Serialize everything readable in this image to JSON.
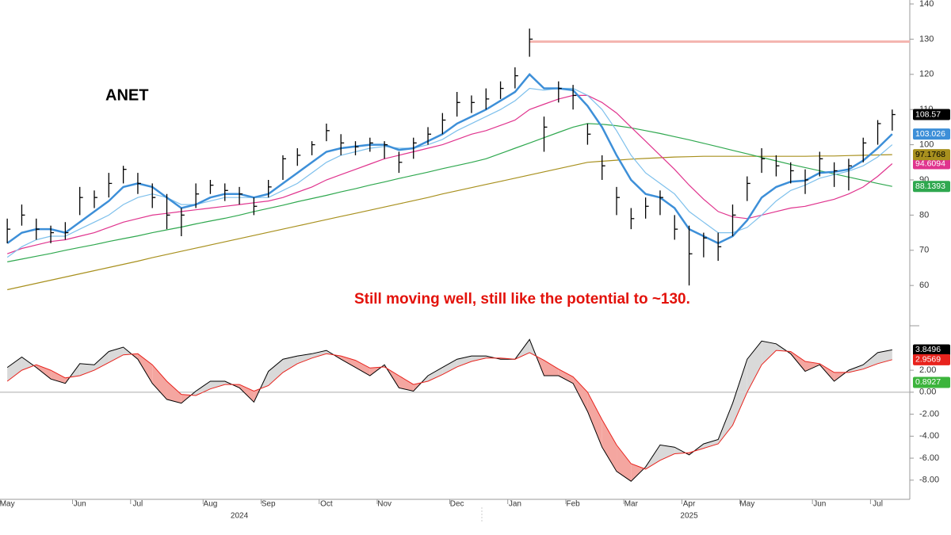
{
  "chart_data": [
    {
      "type": "ohlc",
      "title": "ANET",
      "annotation": "Still moving well, still like the potential to ~130.",
      "categories": [
        "May",
        null,
        null,
        null,
        null,
        "Jun",
        null,
        null,
        null,
        "Jul",
        null,
        null,
        null,
        null,
        "Aug",
        null,
        null,
        null,
        "Sep",
        null,
        null,
        null,
        "Oct",
        null,
        null,
        null,
        "Nov",
        null,
        null,
        null,
        null,
        "Dec",
        null,
        null,
        null,
        "Jan",
        null,
        null,
        null,
        "Feb",
        null,
        null,
        null,
        "Mar",
        null,
        null,
        null,
        "Apr",
        null,
        null,
        null,
        "May",
        null,
        null,
        null,
        null,
        "Jun",
        null,
        null,
        null,
        "Jul",
        null
      ],
      "x_year_labels": [
        {
          "value": 16,
          "label": "2024"
        },
        {
          "value": 47,
          "label": "2025"
        }
      ],
      "high": [
        79,
        83,
        79,
        77,
        78,
        88,
        87,
        92,
        94,
        92,
        89,
        86,
        82,
        89,
        90,
        89,
        88,
        85,
        90,
        97,
        99,
        101,
        106,
        103,
        101,
        102,
        101,
        98,
        102,
        105,
        109,
        115,
        114,
        116,
        118,
        122,
        133,
        108,
        118,
        117,
        106,
        97,
        88,
        82,
        85,
        87,
        80,
        77,
        75,
        75,
        83,
        91,
        99,
        97,
        95,
        93,
        98,
        95,
        96,
        102,
        107,
        110
      ],
      "low": [
        72,
        77,
        73,
        72,
        73,
        80,
        82,
        85,
        89,
        86,
        82,
        76,
        74,
        82,
        86,
        84,
        83,
        80,
        85,
        90,
        94,
        97,
        101,
        97,
        97,
        98,
        96,
        92,
        96,
        100,
        103,
        108,
        109,
        110,
        113,
        116,
        125,
        98,
        112,
        110,
        100,
        90,
        80,
        76,
        79,
        80,
        73,
        60,
        68,
        67,
        74,
        84,
        92,
        91,
        89,
        86,
        91,
        88,
        87,
        95,
        100,
        104
      ],
      "close": [
        76,
        80,
        76,
        75,
        75,
        85,
        85,
        89,
        93,
        89,
        85,
        80,
        80,
        86,
        88.5,
        87,
        86,
        82.5,
        88,
        96,
        97,
        100,
        104,
        100.5,
        99.4,
        100.5,
        100,
        95,
        100.5,
        103,
        107,
        112,
        112,
        113,
        116,
        119.6,
        130,
        105,
        116,
        114,
        103,
        94,
        85,
        79,
        82.5,
        85,
        76,
        69,
        73.5,
        71,
        80,
        89,
        96,
        94,
        92.6,
        90,
        96,
        92.6,
        94,
        100.5,
        106,
        108.57
      ],
      "color": "#000000",
      "series": [
        {
          "color": "#3d8fd8",
          "values": [
            72,
            75,
            76,
            76,
            75,
            78,
            81,
            84,
            88,
            89,
            88,
            85,
            82,
            83,
            85,
            86,
            86,
            85,
            86,
            89,
            92,
            95,
            98,
            99,
            99.5,
            100,
            100,
            98.5,
            99,
            101,
            103,
            106,
            108,
            110,
            112.5,
            115,
            120,
            116,
            116,
            115.5,
            111,
            105,
            97,
            90,
            86,
            85,
            82,
            76,
            74,
            72,
            74,
            78.5,
            85,
            88,
            89.5,
            89.8,
            92,
            92.3,
            93,
            95.5,
            99,
            103.026
          ]
        },
        {
          "color": "#7ec0ec",
          "values": [
            68,
            71,
            73,
            74,
            74,
            76,
            78,
            80,
            83,
            85,
            86,
            85,
            83,
            83,
            84,
            85,
            85,
            85,
            85,
            87,
            89,
            92,
            95,
            97,
            98,
            99,
            99.5,
            99,
            99,
            100,
            101.5,
            104,
            106,
            108,
            110,
            112.5,
            116,
            115.5,
            116,
            116,
            114,
            110,
            104,
            97,
            92,
            89,
            86,
            81,
            78,
            75,
            75,
            76.5,
            80,
            84,
            87,
            88.5,
            90.5,
            91.5,
            92.5,
            94,
            96.5,
            100
          ]
        },
        {
          "color": "#e0348e",
          "values": [
            69,
            70.5,
            71.5,
            72.5,
            73,
            74,
            75,
            76.5,
            78,
            79,
            80,
            80.5,
            81,
            81.5,
            82,
            82.5,
            83,
            83.5,
            84,
            85,
            86.5,
            88,
            90,
            91.5,
            93,
            94.5,
            96,
            97,
            98,
            99,
            100,
            101.5,
            103,
            104,
            105.5,
            107,
            110,
            111.5,
            113,
            114,
            114,
            112,
            109,
            105,
            101,
            97,
            93,
            88.5,
            84.5,
            81,
            79.5,
            79,
            80,
            81,
            82,
            82.5,
            83.5,
            84.5,
            86,
            88,
            91,
            94.6094
          ]
        },
        {
          "color": "#2fa84f",
          "values": [
            66.7,
            67.5,
            68.3,
            69.1,
            70,
            70.8,
            71.6,
            72.5,
            73.3,
            74.1,
            75,
            75.8,
            76.6,
            77.5,
            78.3,
            79.1,
            80,
            81,
            81.9,
            82.8,
            83.8,
            84.7,
            85.6,
            86.6,
            87.5,
            88.5,
            89.4,
            90.4,
            91.3,
            92.2,
            93.2,
            94.1,
            95,
            96,
            97.5,
            99,
            100.5,
            102,
            103.5,
            105,
            106,
            105.8,
            105.4,
            104.8,
            104,
            103.2,
            102.3,
            101.4,
            100.4,
            99.4,
            98.4,
            97.4,
            96.4,
            95.4,
            94.4,
            93.5,
            92.6,
            91.7,
            90.8,
            89.9,
            89,
            88.1393
          ]
        },
        {
          "color": "#a8901e",
          "values": [
            58.8,
            59.7,
            60.6,
            61.5,
            62.4,
            63.3,
            64.2,
            65.1,
            66,
            66.9,
            67.9,
            68.8,
            69.7,
            70.6,
            71.5,
            72.4,
            73.3,
            74.2,
            75.1,
            76,
            76.9,
            77.8,
            78.7,
            79.6,
            80.5,
            81.4,
            82.3,
            83.2,
            84.1,
            85,
            86,
            86.9,
            87.8,
            88.7,
            89.6,
            90.5,
            91.4,
            92.3,
            93.2,
            94.1,
            95,
            95.3,
            95.6,
            95.9,
            96.1,
            96.3,
            96.5,
            96.6,
            96.7,
            96.7,
            96.7,
            96.7,
            96.7,
            96.7,
            96.7,
            96.7,
            96.8,
            96.8,
            96.9,
            97,
            97.1,
            97.1768
          ]
        }
      ],
      "reference_line": {
        "value": 129.3,
        "color": "#f4b6b0"
      },
      "ylim": [
        49,
        140
      ],
      "yticks": [
        60,
        70,
        80,
        90,
        100,
        110,
        120,
        130,
        140
      ]
    },
    {
      "type": "macd",
      "series": [
        {
          "color": "#000000",
          "values": [
            2.25,
            3.2,
            2.25,
            1.2,
            0.8,
            2.6,
            2.5,
            3.7,
            4.1,
            3,
            0.8,
            -0.65,
            -1,
            0.1,
            1,
            1,
            0.4,
            -0.9,
            1.9,
            3,
            3.3,
            3.5,
            3.8,
            3,
            2.25,
            1.5,
            2.5,
            0.4,
            0.1,
            1.5,
            2.25,
            3,
            3.3,
            3.3,
            3,
            3,
            4.8,
            1.5,
            1.5,
            0.8,
            -1.75,
            -5,
            -7.2,
            -8.1,
            -6.8,
            -4.8,
            -5,
            -5.7,
            -4.7,
            -4.3,
            -1,
            3,
            4.65,
            4.4,
            3.5,
            1.9,
            2.5,
            1,
            2,
            2.5,
            3.6,
            3.8496
          ]
        },
        {
          "color": "#e8231d",
          "values": [
            1,
            2,
            2.5,
            2,
            1.3,
            1.5,
            2,
            2.7,
            3.4,
            3.5,
            2.5,
            1,
            -0.2,
            -0.3,
            0.3,
            0.7,
            0.7,
            0.1,
            0.6,
            1.8,
            2.6,
            3.1,
            3.5,
            3.3,
            2.9,
            2.2,
            2.3,
            1.5,
            0.7,
            1,
            1.6,
            2.3,
            2.8,
            3.1,
            3.1,
            3,
            3.6,
            2.9,
            2.1,
            1.4,
            0,
            -2.5,
            -4.8,
            -6.5,
            -7,
            -6.2,
            -5.6,
            -5.5,
            -5.1,
            -4.7,
            -3,
            0,
            2.5,
            3.8,
            3.7,
            2.8,
            2.6,
            1.8,
            1.8,
            2.1,
            2.6,
            2.9569
          ]
        }
      ],
      "fill_colors": {
        "above": "#d9d9d9",
        "below": "#f4a6a0"
      },
      "difference": 0.8927,
      "difference_color": "#3cb43c",
      "zero_line": true,
      "ylim": [
        -9.6,
        5.9
      ],
      "yticks": [
        {
          "value": -8,
          "label": "-8.00"
        },
        {
          "value": -6,
          "label": "-6.00"
        },
        {
          "value": -4,
          "label": "-4.00"
        },
        {
          "value": -2,
          "label": "-2.00"
        },
        {
          "value": 0,
          "label": "0.00"
        },
        {
          "value": 2,
          "label": "2.00"
        }
      ]
    }
  ]
}
